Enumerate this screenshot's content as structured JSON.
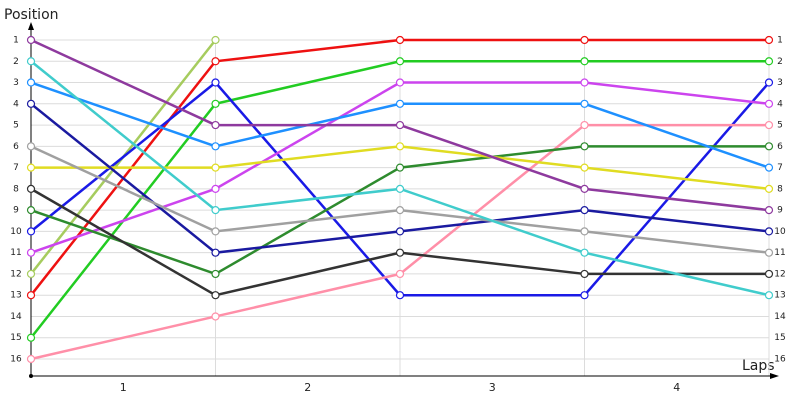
{
  "chart_data": {
    "type": "line",
    "ylabel": "Position",
    "xlabel": "Laps",
    "x": [
      0,
      1,
      2,
      3,
      4
    ],
    "xlim": [
      0,
      4
    ],
    "xticks": [
      {
        "value": 0.5,
        "label": "1"
      },
      {
        "value": 1.5,
        "label": "2"
      },
      {
        "value": 2.5,
        "label": "3"
      },
      {
        "value": 3.5,
        "label": "4"
      }
    ],
    "ylim": [
      16,
      1
    ],
    "yticks": [
      1,
      2,
      3,
      4,
      5,
      6,
      7,
      8,
      9,
      10,
      11,
      12,
      13,
      14,
      15,
      16
    ],
    "grid": true,
    "series": [
      {
        "color": "#a6cc5e",
        "values": [
          12,
          1,
          null,
          null,
          null
        ]
      },
      {
        "color": "#ee1111",
        "values": [
          13,
          2,
          1,
          1,
          1
        ]
      },
      {
        "color": "#22cc22",
        "values": [
          15,
          4,
          2,
          2,
          2
        ]
      },
      {
        "color": "#1a1ae6",
        "values": [
          10,
          3,
          13,
          13,
          3
        ]
      },
      {
        "color": "#cc44ee",
        "values": [
          11,
          8,
          3,
          3,
          4
        ]
      },
      {
        "color": "#ff8fa8",
        "values": [
          16,
          14,
          12,
          5,
          5
        ]
      },
      {
        "color": "#2e8b2e",
        "values": [
          9,
          12,
          7,
          6,
          6
        ]
      },
      {
        "color": "#1e90ff",
        "values": [
          3,
          6,
          4,
          4,
          7
        ]
      },
      {
        "color": "#e0dc22",
        "values": [
          7,
          7,
          6,
          7,
          8
        ]
      },
      {
        "color": "#8e3a9e",
        "values": [
          1,
          5,
          5,
          8,
          9
        ]
      },
      {
        "color": "#1a1aa0",
        "values": [
          4,
          11,
          10,
          9,
          10
        ]
      },
      {
        "color": "#a0a0a0",
        "values": [
          6,
          10,
          9,
          10,
          11
        ]
      },
      {
        "color": "#333333",
        "values": [
          8,
          13,
          11,
          12,
          12
        ]
      },
      {
        "color": "#40cccc",
        "values": [
          2,
          9,
          8,
          11,
          13
        ]
      }
    ]
  }
}
